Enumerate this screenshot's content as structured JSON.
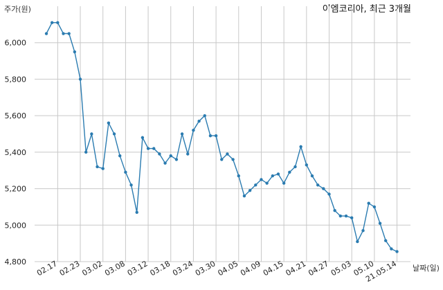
{
  "chart_data": {
    "type": "line",
    "title": "이엠코리아, 최근 3개월",
    "ylabel": "주가(원)",
    "xlabel": "날짜(일)",
    "ylim": [
      4800,
      6200
    ],
    "yticks": [
      4800,
      5000,
      5200,
      5400,
      5600,
      5800,
      6000
    ],
    "ytick_labels": [
      "4,800",
      "5,000",
      "5,200",
      "5,400",
      "5,600",
      "5,800",
      "6,000"
    ],
    "xticks": [
      "02.17",
      "02.23",
      "03.02",
      "03.08",
      "03.12",
      "03.18",
      "03.24",
      "03.30",
      "04.05",
      "04.09",
      "04.15",
      "04.21",
      "04.27",
      "05.03",
      "05.10",
      "21.05.14"
    ],
    "xtick_index": [
      2,
      6,
      10,
      14,
      18,
      22,
      26,
      30,
      34,
      38,
      42,
      46,
      50,
      54,
      58,
      62
    ],
    "grid": true,
    "series": [
      {
        "values": [
          6050,
          6110,
          6110,
          6050,
          6050,
          5950,
          5800,
          5400,
          5500,
          5320,
          5310,
          5560,
          5500,
          5380,
          5290,
          5220,
          5070,
          5480,
          5420,
          5420,
          5390,
          5340,
          5380,
          5360,
          5500,
          5390,
          5520,
          5570,
          5600,
          5490,
          5490,
          5360,
          5390,
          5360,
          5270,
          5160,
          5190,
          5220,
          5250,
          5230,
          5270,
          5280,
          5230,
          5290,
          5320,
          5430,
          5330,
          5270,
          5220,
          5200,
          5170,
          5080,
          5050,
          5050,
          5040,
          4910,
          4970,
          5120,
          5100,
          5010,
          4915,
          4870,
          4855
        ]
      }
    ]
  }
}
